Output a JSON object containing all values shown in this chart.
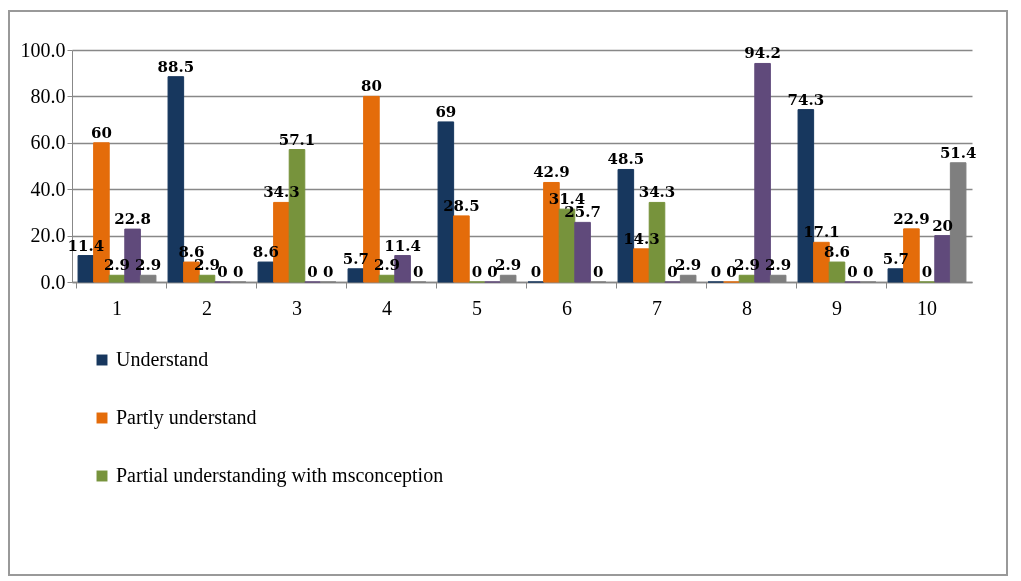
{
  "chart_data": {
    "type": "bar",
    "categories": [
      "1",
      "2",
      "3",
      "4",
      "5",
      "6",
      "7",
      "8",
      "9",
      "10"
    ],
    "series": [
      {
        "name": "Understand",
        "color": "#17375e",
        "values": [
          11.4,
          88.5,
          8.6,
          5.7,
          69,
          0,
          48.5,
          0,
          74.3,
          5.7
        ]
      },
      {
        "name": "Partly understand",
        "color": "#e46c0a",
        "values": [
          60,
          8.6,
          34.3,
          80,
          28.5,
          42.9,
          14.3,
          0,
          17.1,
          22.9
        ]
      },
      {
        "name": "Partial understanding with msconception",
        "color": "#77933c",
        "values": [
          2.9,
          2.9,
          57.1,
          2.9,
          0,
          31.4,
          34.3,
          2.9,
          8.6,
          0
        ]
      },
      {
        "color": "#604a7b",
        "values": [
          22.8,
          0,
          0,
          11.4,
          0,
          25.7,
          0,
          94.2,
          0,
          20
        ]
      },
      {
        "color": "#7f7f7f",
        "values": [
          2.9,
          0,
          0,
          0,
          2.9,
          0,
          2.9,
          2.9,
          0,
          51.4
        ]
      }
    ],
    "ylim": [
      0,
      100
    ],
    "yticks": [
      {
        "value": 0,
        "label": "0.0"
      },
      {
        "value": 20,
        "label": "20.0"
      },
      {
        "value": 40,
        "label": "40.0"
      },
      {
        "value": 60,
        "label": "60.0"
      },
      {
        "value": 80,
        "label": "80.0"
      },
      {
        "value": 100,
        "label": "100.0"
      }
    ],
    "grid": "y",
    "legend": "bottom",
    "data_labels": true
  }
}
